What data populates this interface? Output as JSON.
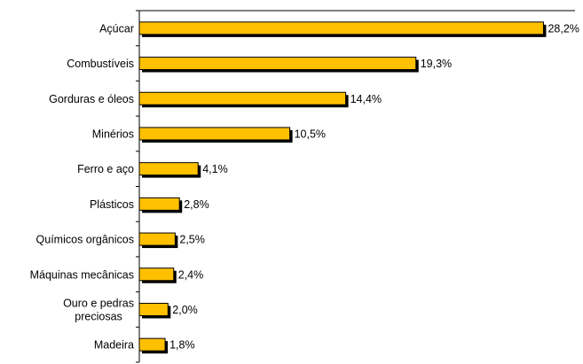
{
  "chart_data": {
    "type": "bar",
    "orientation": "horizontal",
    "categories": [
      "Açúcar",
      "Combustíveis",
      "Gorduras e óleos",
      "Minérios",
      "Ferro e aço",
      "Plásticos",
      "Químicos orgânicos",
      "Máquinas mecânicas",
      "Ouro e pedras preciosas",
      "Madeira"
    ],
    "category_lines": [
      [
        "Açúcar"
      ],
      [
        "Combustíveis"
      ],
      [
        "Gorduras e óleos"
      ],
      [
        "Minérios"
      ],
      [
        "Ferro e aço"
      ],
      [
        "Plásticos"
      ],
      [
        "Químicos orgânicos"
      ],
      [
        "Máquinas mecânicas"
      ],
      [
        "Ouro e pedras",
        "preciosas"
      ],
      [
        "Madeira"
      ]
    ],
    "values": [
      28.2,
      19.3,
      14.4,
      10.5,
      4.1,
      2.8,
      2.5,
      2.4,
      2.0,
      1.8
    ],
    "value_labels": [
      "28,2%",
      "19,3%",
      "14,4%",
      "10,5%",
      "4,1%",
      "2,8%",
      "2,5%",
      "2,4%",
      "2,0%",
      "1,8%"
    ],
    "xlim": [
      0,
      30.4
    ],
    "grid": false,
    "legend": "none",
    "colors": {
      "bar": "#FFC000",
      "bar_border": "#000000",
      "shadow": "#000000",
      "axis": "#000000"
    }
  }
}
